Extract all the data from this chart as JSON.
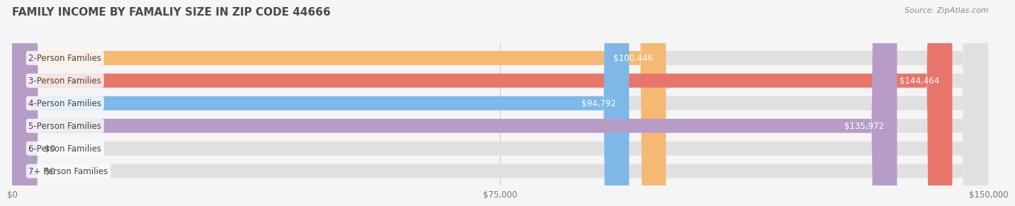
{
  "title": "FAMILY INCOME BY FAMALIY SIZE IN ZIP CODE 44666",
  "source_text": "Source: ZipAtlas.com",
  "categories": [
    "2-Person Families",
    "3-Person Families",
    "4-Person Families",
    "5-Person Families",
    "6-Person Families",
    "7+ Person Families"
  ],
  "values": [
    100446,
    144464,
    94792,
    135972,
    0,
    0
  ],
  "bar_colors": [
    "#F5B973",
    "#E8756A",
    "#7DB8E8",
    "#B89CC8",
    "#6ECCC4",
    "#B8C4E8"
  ],
  "label_colors": [
    "white",
    "white",
    "white",
    "white",
    "#555555",
    "#555555"
  ],
  "value_labels": [
    "$100,446",
    "$144,464",
    "$94,792",
    "$135,972",
    "$0",
    "$0"
  ],
  "xlim": [
    0,
    150000
  ],
  "xtick_values": [
    0,
    75000,
    150000
  ],
  "xtick_labels": [
    "$0",
    "$75,000",
    "$150,000"
  ],
  "title_fontsize": 11,
  "bar_height": 0.62,
  "background_color": "#f5f5f5",
  "bar_bg_color": "#e0e0e0",
  "title_color": "#4a4a4a",
  "label_fontsize": 8.5,
  "value_fontsize": 8.5,
  "source_fontsize": 8
}
